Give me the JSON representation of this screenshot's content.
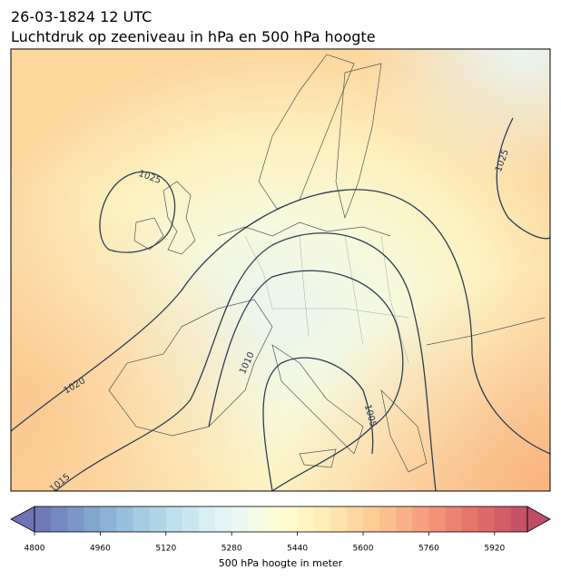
{
  "header": {
    "title": "26-03-1824 12 UTC",
    "subtitle": "Luchtdruk op zeeniveau in hPa en 500 hPa hoogte"
  },
  "contour_labels": [
    "1025",
    "1025",
    "1020",
    "1015",
    "1010",
    "1005"
  ],
  "colorbar": {
    "label": "500 hPa hoogte in meter",
    "range": [
      4800,
      6000
    ],
    "level_step": 40,
    "ticks": [
      4800,
      4960,
      5120,
      5280,
      5440,
      5600,
      5760,
      5920
    ],
    "colormap": [
      "#313695",
      "#4575b4",
      "#74add1",
      "#abd9e9",
      "#e0f3f8",
      "#ffffbf",
      "#fee090",
      "#fdae61",
      "#f46d43",
      "#d73027",
      "#a50026"
    ],
    "alpha": 0.7
  }
}
